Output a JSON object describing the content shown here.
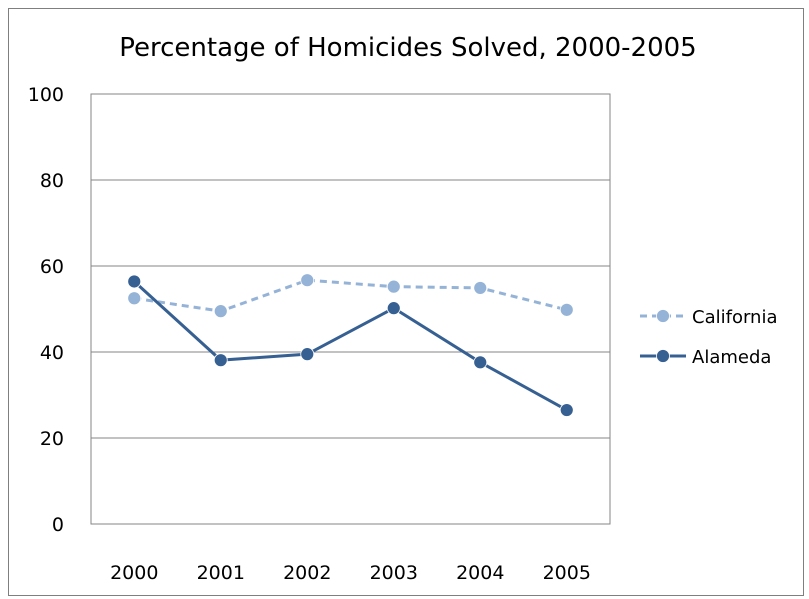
{
  "chart_data": {
    "type": "line",
    "title": "Percentage of Homicides Solved, 2000-2005",
    "xlabel": "",
    "ylabel": "",
    "categories": [
      "2000",
      "2001",
      "2002",
      "2003",
      "2004",
      "2005"
    ],
    "ylim": [
      0,
      100
    ],
    "yticks": [
      "0",
      "20",
      "40",
      "60",
      "80",
      "100"
    ],
    "grid": true,
    "legend_position": "right",
    "series": [
      {
        "name": "California",
        "values": [
          52.5,
          49.5,
          56.7,
          55.2,
          54.9,
          49.8
        ],
        "color": "#95b3d7",
        "line_style": "dashed"
      },
      {
        "name": "Alameda",
        "values": [
          56.4,
          38.1,
          39.5,
          50.2,
          37.6,
          26.5
        ],
        "color": "#376092",
        "line_style": "solid"
      }
    ]
  }
}
